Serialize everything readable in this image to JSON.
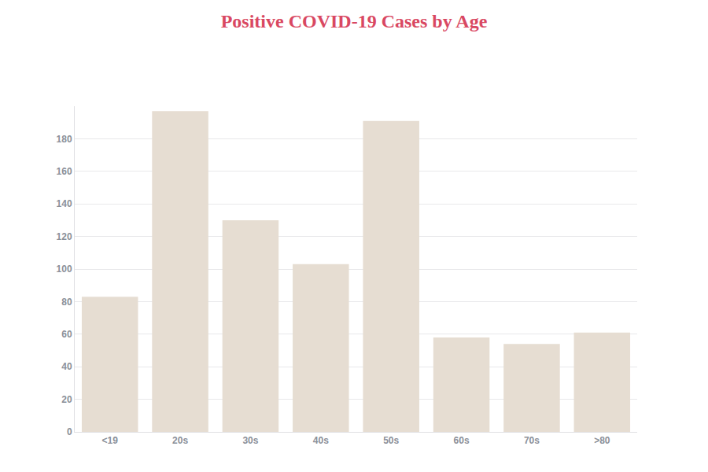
{
  "chart_data": {
    "type": "bar",
    "title": "Positive COVID-19 Cases by Age",
    "categories": [
      "<19",
      "20s",
      "30s",
      "40s",
      "50s",
      "60s",
      "70s",
      ">80"
    ],
    "values": [
      83,
      197,
      130,
      103,
      191,
      58,
      54,
      61
    ],
    "color": "#e6ddd2",
    "ylim": [
      0,
      200
    ],
    "yticks": [
      0,
      20,
      40,
      60,
      80,
      100,
      120,
      140,
      160,
      180
    ],
    "grid": true
  }
}
